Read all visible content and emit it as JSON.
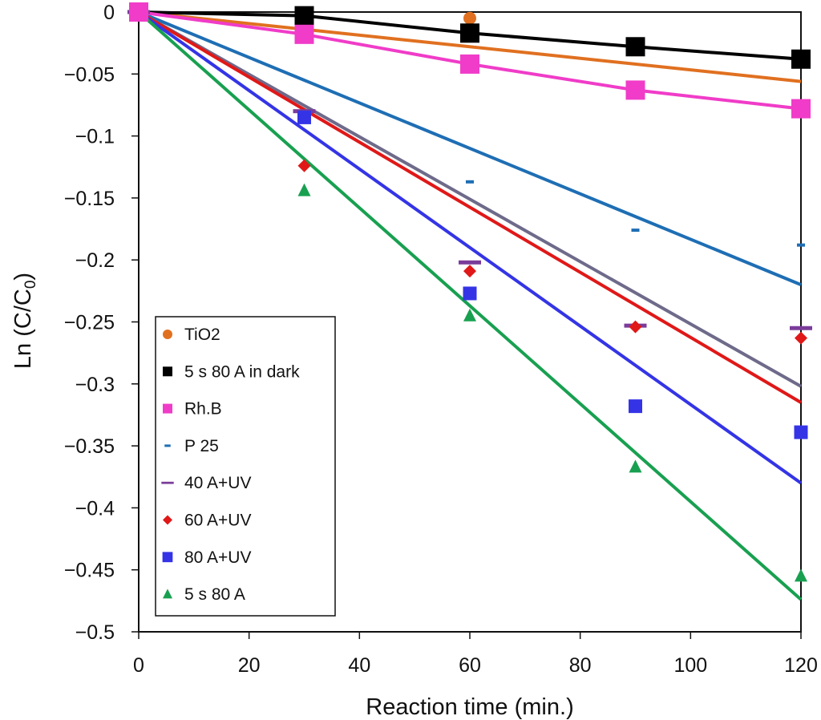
{
  "chart_data": {
    "type": "scatter",
    "title": "",
    "xlabel": "Reaction time (min.)",
    "ylabel_main": "Ln (C/C",
    "ylabel_sub": "0",
    "ylabel_end": ")",
    "xlim": [
      0,
      120
    ],
    "ylim": [
      -0.5,
      0
    ],
    "xticks": [
      0,
      20,
      40,
      60,
      80,
      100,
      120
    ],
    "xtick_labels": [
      "0",
      "20",
      "40",
      "60",
      "80",
      "100",
      "120"
    ],
    "yticks": [
      0,
      -0.05,
      -0.1,
      -0.15,
      -0.2,
      -0.25,
      -0.3,
      -0.35,
      -0.4,
      -0.45,
      -0.5
    ],
    "ytick_labels": [
      "0",
      "−0.05",
      "−0.1",
      "−0.15",
      "−0.2",
      "−0.25",
      "−0.3",
      "−0.35",
      "−0.4",
      "−0.45",
      "−0.5"
    ],
    "grid": false,
    "legend_position": "bottom-left",
    "x": [
      0,
      30,
      60,
      90,
      120
    ],
    "series": [
      {
        "name": "TiO2",
        "marker": "circle",
        "color": "#E07020",
        "line_color": "#E07020",
        "values": [
          0,
          -0.012,
          -0.005,
          -0.026,
          -0.08
        ],
        "fit_end": -0.056
      },
      {
        "name": "5 s 80 A in dark",
        "marker": "square-large",
        "color": "#000000",
        "line_color": "#000000",
        "values": [
          0,
          -0.003,
          -0.017,
          -0.028,
          -0.038
        ],
        "fit_end": -0.037,
        "connected": true
      },
      {
        "name": "Rh.B",
        "marker": "square-large",
        "color": "#F03CC8",
        "line_color": "#F03CC8",
        "values": [
          0,
          -0.018,
          -0.042,
          -0.063,
          -0.078
        ],
        "fit_end": -0.078,
        "connected": true
      },
      {
        "name": "P 25",
        "marker": "dash",
        "color": "#1E6EB4",
        "line_color": "#1E6EB4",
        "values": [
          0,
          -0.085,
          -0.137,
          -0.176,
          -0.188
        ],
        "fit_end": -0.22
      },
      {
        "name": "40 A+UV",
        "marker": "bar",
        "color": "#7A3C9A",
        "line_color": "#6E6A8A",
        "values": [
          0,
          -0.08,
          -0.202,
          -0.253,
          -0.255
        ],
        "fit_end": -0.302
      },
      {
        "name": "60 A+UV",
        "marker": "diamond",
        "color": "#E01818",
        "line_color": "#E01818",
        "values": [
          0,
          -0.124,
          -0.209,
          -0.254,
          -0.263
        ],
        "fit_end": -0.315
      },
      {
        "name": "80 A+UV",
        "marker": "square",
        "color": "#3434E6",
        "line_color": "#3434E6",
        "values": [
          0,
          -0.085,
          -0.227,
          -0.318,
          -0.339
        ],
        "fit_end": -0.38
      },
      {
        "name": "5 s 80 A",
        "marker": "triangle",
        "color": "#18A050",
        "line_color": "#18A050",
        "values": [
          0,
          -0.144,
          -0.245,
          -0.367,
          -0.455
        ],
        "fit_end": -0.474
      }
    ]
  }
}
